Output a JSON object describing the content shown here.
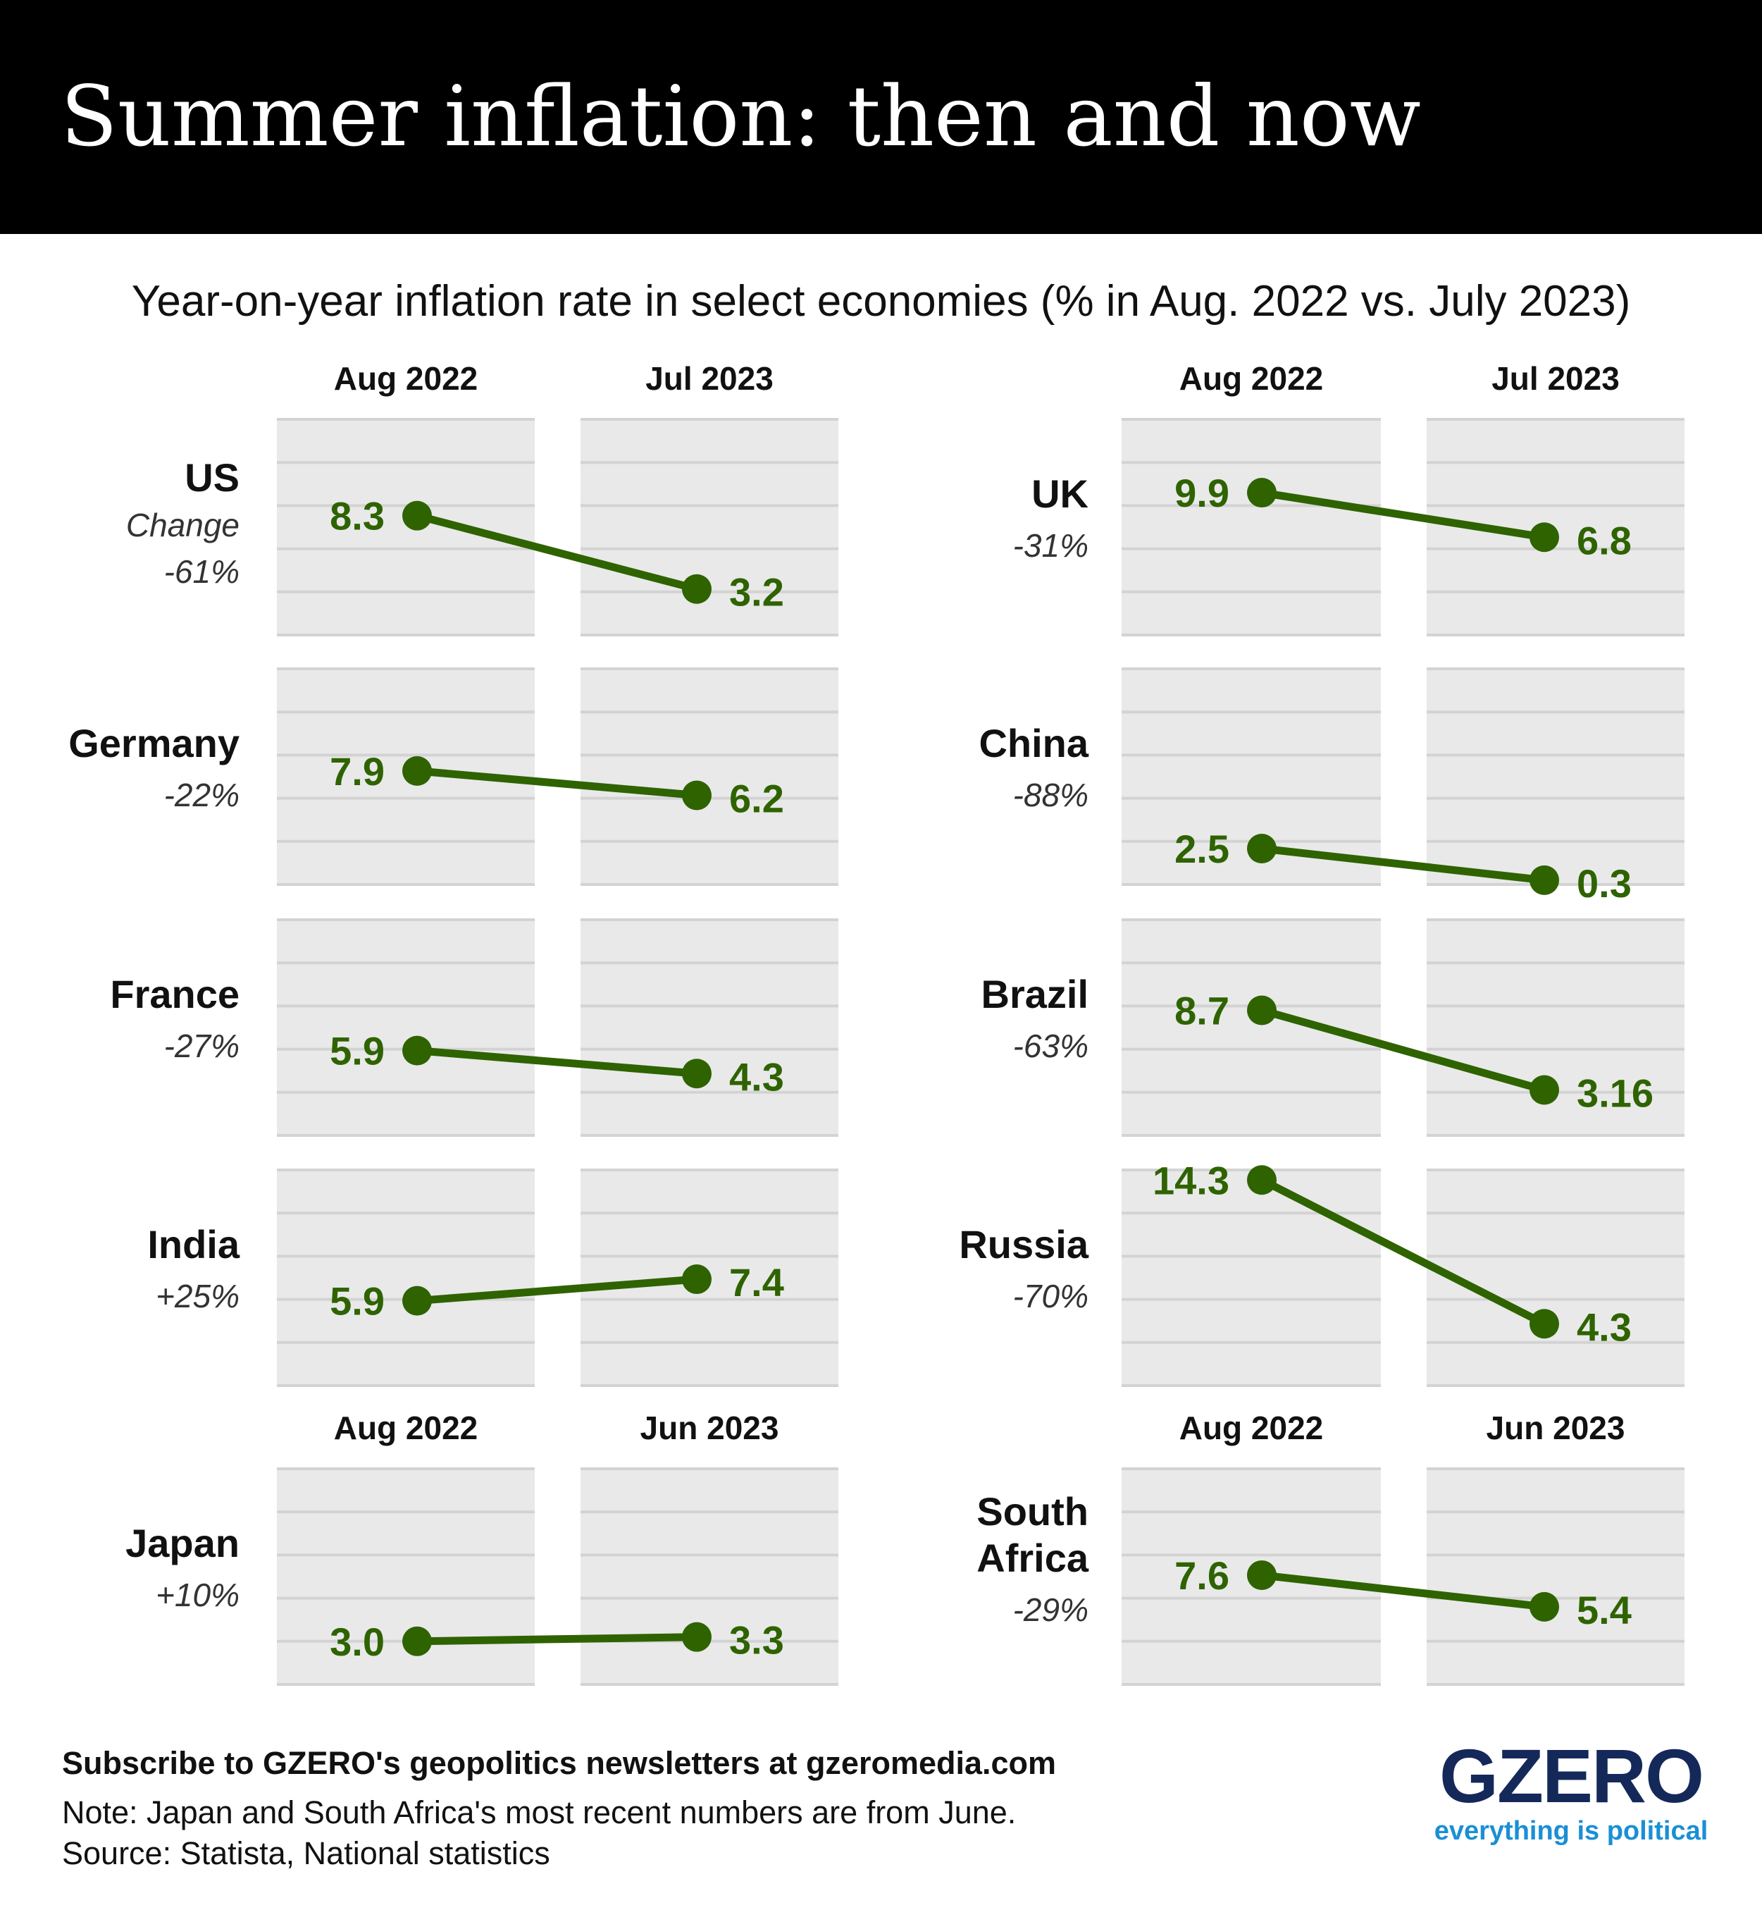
{
  "title": "Summer inflation: then and now",
  "subtitle": "Year-on-year inflation rate in select economies (% in Aug. 2022 vs. July 2023)",
  "footer": {
    "cta": "Subscribe to GZERO's geopolitics newsletters at gzeromedia.com",
    "note": "Note: Japan and South Africa's most recent numbers are from June.",
    "source": "Source: Statista, National statistics"
  },
  "logo": {
    "word": "GZERO",
    "tagline": "everything is political"
  },
  "colors": {
    "line": "#2e6300",
    "panel_bg": "#e9e9e9",
    "grid": "#d3d3d3",
    "header_bg": "#000000"
  },
  "chart_data": {
    "type": "line",
    "title": "Summer inflation: then and now",
    "ylabel": "Year-on-year inflation rate (%)",
    "ylim": [
      0,
      15
    ],
    "yticks": [
      0,
      3,
      6,
      9,
      12,
      15
    ],
    "grid": true,
    "change_heading": "Change",
    "column_headers": [
      {
        "row": 0,
        "labels": [
          "Aug 2022",
          "Jul 2023"
        ]
      },
      {
        "row": 4,
        "labels": [
          "Aug 2022",
          "Jun 2023"
        ]
      }
    ],
    "series": [
      {
        "name": [
          "US"
        ],
        "change": "-61%",
        "side": "left",
        "row": 0,
        "x": [
          "Aug 2022",
          "Jul 2023"
        ],
        "values": [
          8.3,
          3.2
        ],
        "labels": [
          "8.3",
          "3.2"
        ]
      },
      {
        "name": [
          "UK"
        ],
        "change": "-31%",
        "side": "right",
        "row": 0,
        "x": [
          "Aug 2022",
          "Jul 2023"
        ],
        "values": [
          9.9,
          6.8
        ],
        "labels": [
          "9.9",
          "6.8"
        ]
      },
      {
        "name": [
          "Germany"
        ],
        "change": "-22%",
        "side": "left",
        "row": 1,
        "x": [
          "Aug 2022",
          "Jul 2023"
        ],
        "values": [
          7.9,
          6.2
        ],
        "labels": [
          "7.9",
          "6.2"
        ]
      },
      {
        "name": [
          "China"
        ],
        "change": "-88%",
        "side": "right",
        "row": 1,
        "x": [
          "Aug 2022",
          "Jul 2023"
        ],
        "values": [
          2.5,
          0.3
        ],
        "labels": [
          "2.5",
          "0.3"
        ]
      },
      {
        "name": [
          "France"
        ],
        "change": "-27%",
        "side": "left",
        "row": 2,
        "x": [
          "Aug 2022",
          "Jul 2023"
        ],
        "values": [
          5.9,
          4.3
        ],
        "labels": [
          "5.9",
          "4.3"
        ]
      },
      {
        "name": [
          "Brazil"
        ],
        "change": "-63%",
        "side": "right",
        "row": 2,
        "x": [
          "Aug 2022",
          "Jul 2023"
        ],
        "values": [
          8.7,
          3.16
        ],
        "labels": [
          "8.7",
          "3.16"
        ]
      },
      {
        "name": [
          "India"
        ],
        "change": "+25%",
        "side": "left",
        "row": 3,
        "x": [
          "Aug 2022",
          "Jul 2023"
        ],
        "values": [
          5.9,
          7.4
        ],
        "labels": [
          "5.9",
          "7.4"
        ]
      },
      {
        "name": [
          "Russia"
        ],
        "change": "-70%",
        "side": "right",
        "row": 3,
        "x": [
          "Aug 2022",
          "Jul 2023"
        ],
        "values": [
          14.3,
          4.3
        ],
        "labels": [
          "14.3",
          "4.3"
        ]
      },
      {
        "name": [
          "Japan"
        ],
        "change": "+10%",
        "side": "left",
        "row": 4,
        "x": [
          "Aug 2022",
          "Jun 2023"
        ],
        "values": [
          3.0,
          3.3
        ],
        "labels": [
          "3.0",
          "3.3"
        ]
      },
      {
        "name": [
          "South",
          "Africa"
        ],
        "change": "-29%",
        "side": "right",
        "row": 4,
        "x": [
          "Aug 2022",
          "Jun 2023"
        ],
        "values": [
          7.6,
          5.4
        ],
        "labels": [
          "7.6",
          "5.4"
        ]
      }
    ]
  }
}
